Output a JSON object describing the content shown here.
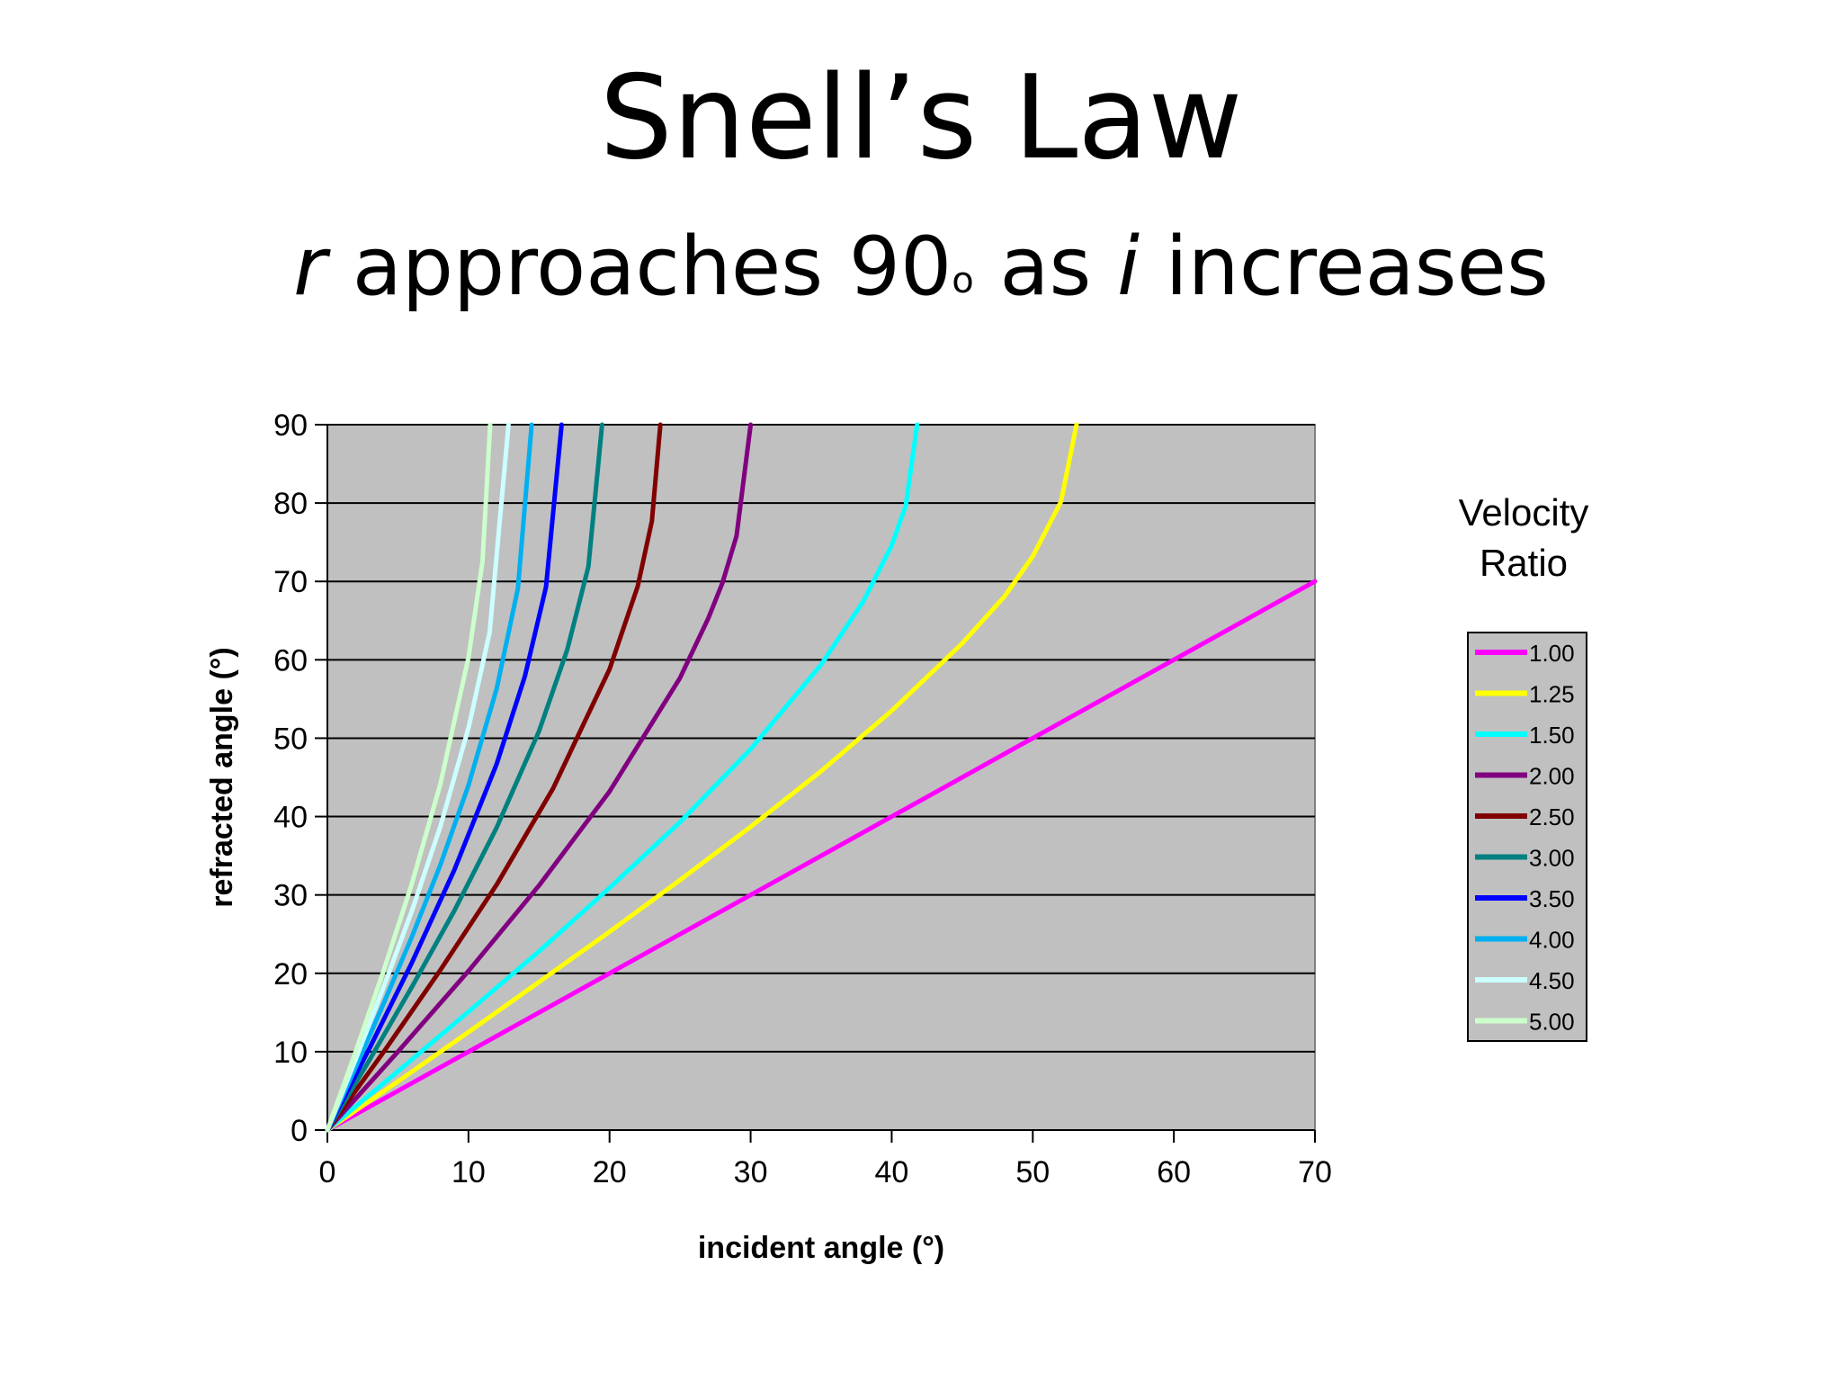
{
  "slide": {
    "title": "Snell’s Law",
    "subtitle": {
      "var_r": "r",
      "text_a": " approaches 90",
      "sup": "o",
      "text_b": " as ",
      "var_i": "i",
      "text_c": " increases"
    }
  },
  "chart_data": {
    "type": "line",
    "title": "",
    "xlabel": "incident angle (°)",
    "ylabel": "refracted angle (°)",
    "xlim": [
      0,
      70
    ],
    "ylim": [
      0,
      90
    ],
    "xticks": [
      "0",
      "10",
      "20",
      "30",
      "40",
      "50",
      "60",
      "70"
    ],
    "yticks": [
      "0",
      "10",
      "20",
      "30",
      "40",
      "50",
      "60",
      "70",
      "80",
      "90"
    ],
    "grid": "horizontal",
    "plot_background": "#c0c0c0",
    "legend": {
      "title_line1": "Velocity",
      "title_line2": "Ratio",
      "placement": "right"
    },
    "x": [
      0,
      2,
      4,
      6,
      8,
      10,
      12,
      14,
      16,
      18,
      20,
      22,
      24,
      26,
      28,
      30,
      32,
      34,
      36,
      38,
      40,
      42,
      44,
      46,
      48,
      50,
      52,
      54,
      56,
      58,
      60,
      62,
      64,
      66,
      68,
      70
    ],
    "series": [
      {
        "name": "1.00",
        "color": "#ff00ff",
        "x": [
          0,
          10,
          20,
          30,
          40,
          50,
          60,
          70
        ],
        "values": [
          0,
          10,
          20,
          30,
          40,
          50,
          60,
          70
        ]
      },
      {
        "name": "1.25",
        "color": "#ffff00",
        "x": [
          0,
          5,
          10,
          15,
          20,
          25,
          30,
          35,
          40,
          45,
          48,
          50,
          52,
          53.1
        ],
        "values": [
          0,
          6.2,
          12.5,
          18.9,
          25.3,
          31.9,
          38.7,
          45.8,
          53.5,
          62.1,
          68.1,
          73.2,
          80.2,
          90
        ]
      },
      {
        "name": "1.50",
        "color": "#00ffff",
        "x": [
          0,
          5,
          10,
          15,
          20,
          25,
          30,
          35,
          38,
          40,
          41,
          41.8
        ],
        "values": [
          0,
          7.5,
          15.1,
          22.8,
          30.9,
          39.3,
          48.6,
          59.4,
          67.5,
          74.6,
          79.7,
          90
        ]
      },
      {
        "name": "2.00",
        "color": "#800080",
        "x": [
          0,
          5,
          10,
          15,
          20,
          25,
          27,
          28,
          29,
          30
        ],
        "values": [
          0,
          10.0,
          20.3,
          31.2,
          43.2,
          57.7,
          65.3,
          69.8,
          75.8,
          90
        ]
      },
      {
        "name": "2.50",
        "color": "#800000",
        "x": [
          0,
          4,
          8,
          12,
          16,
          20,
          22,
          23,
          23.6
        ],
        "values": [
          0,
          10.0,
          20.4,
          31.3,
          43.6,
          58.8,
          69.4,
          77.7,
          90
        ]
      },
      {
        "name": "3.00",
        "color": "#008080",
        "x": [
          0,
          3,
          6,
          9,
          12,
          15,
          17,
          18.5,
          19.47
        ],
        "values": [
          0,
          9.0,
          18.3,
          28.0,
          38.6,
          50.9,
          61.3,
          71.9,
          90
        ]
      },
      {
        "name": "3.50",
        "color": "#0000ff",
        "x": [
          0,
          3,
          6,
          9,
          12,
          14,
          15.5,
          16.6
        ],
        "values": [
          0,
          10.5,
          21.4,
          33.2,
          46.7,
          57.9,
          69.3,
          90
        ]
      },
      {
        "name": "4.00",
        "color": "#00b0f0",
        "x": [
          0,
          2,
          4,
          6,
          8,
          10,
          12,
          13.5,
          14.48
        ],
        "values": [
          0,
          8.0,
          16.2,
          24.7,
          33.8,
          44.0,
          56.3,
          69.1,
          90
        ]
      },
      {
        "name": "4.50",
        "color": "#ccffff",
        "x": [
          0,
          2,
          4,
          6,
          8,
          10,
          11.5,
          12.84
        ],
        "values": [
          0,
          9.0,
          18.3,
          28.0,
          38.7,
          51.3,
          63.5,
          90
        ]
      },
      {
        "name": "5.00",
        "color": "#ccffcc",
        "x": [
          0,
          2,
          4,
          6,
          8,
          10,
          11,
          11.54
        ],
        "values": [
          0,
          10.0,
          20.4,
          31.5,
          44.1,
          60.3,
          72.6,
          90
        ]
      }
    ]
  }
}
